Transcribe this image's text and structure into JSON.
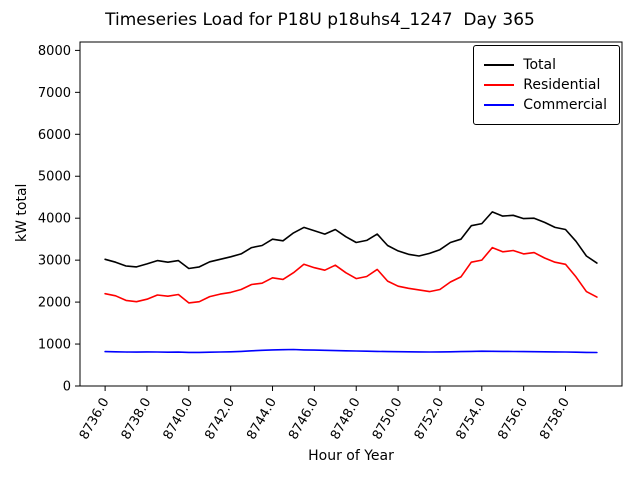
{
  "chart_data": {
    "type": "line",
    "title": "Timeseries Load for P18U p18uhs4_1247  Day 365",
    "xlabel": "Hour of Year",
    "ylabel": "kW total",
    "xlim": [
      8734.8,
      8760.7
    ],
    "ylim": [
      0,
      8200
    ],
    "grid": false,
    "legend_position": "upper right",
    "xticks": [
      8736,
      8738,
      8740,
      8742,
      8744,
      8746,
      8748,
      8750,
      8752,
      8754,
      8756,
      8758
    ],
    "xtick_labels": [
      "8736.0",
      "8738.0",
      "8740.0",
      "8742.0",
      "8744.0",
      "8746.0",
      "8748.0",
      "8750.0",
      "8752.0",
      "8754.0",
      "8756.0",
      "8758.0"
    ],
    "yticks": [
      0,
      1000,
      2000,
      3000,
      4000,
      5000,
      6000,
      7000,
      8000
    ],
    "ytick_labels": [
      "0",
      "1000",
      "2000",
      "3000",
      "4000",
      "5000",
      "6000",
      "7000",
      "8000"
    ],
    "x": [
      8736.0,
      8736.5,
      8737.0,
      8737.5,
      8738.0,
      8738.5,
      8739.0,
      8739.5,
      8740.0,
      8740.5,
      8741.0,
      8741.5,
      8742.0,
      8742.5,
      8743.0,
      8743.5,
      8744.0,
      8744.5,
      8745.0,
      8745.5,
      8746.0,
      8746.5,
      8747.0,
      8747.5,
      8748.0,
      8748.5,
      8749.0,
      8749.5,
      8750.0,
      8750.5,
      8751.0,
      8751.5,
      8752.0,
      8752.5,
      8753.0,
      8753.5,
      8754.0,
      8754.5,
      8755.0,
      8755.5,
      8756.0,
      8756.5,
      8757.0,
      8757.5,
      8758.0,
      8758.5,
      8759.0,
      8759.5
    ],
    "series": [
      {
        "name": "Total",
        "color": "#000000",
        "values": [
          3020,
          2950,
          2860,
          2840,
          2910,
          2990,
          2950,
          2990,
          2800,
          2840,
          2960,
          3020,
          3080,
          3150,
          3300,
          3350,
          3500,
          3460,
          3650,
          3780,
          3700,
          3620,
          3730,
          3560,
          3420,
          3470,
          3620,
          3350,
          3220,
          3140,
          3100,
          3160,
          3250,
          3420,
          3500,
          3820,
          3870,
          4150,
          4050,
          4070,
          3990,
          4000,
          3900,
          3780,
          3730,
          3450,
          3100,
          2930
        ]
      },
      {
        "name": "Residential",
        "color": "#ff0000",
        "values": [
          2200,
          2150,
          2040,
          2010,
          2070,
          2170,
          2140,
          2180,
          1980,
          2010,
          2130,
          2190,
          2230,
          2300,
          2420,
          2450,
          2580,
          2540,
          2700,
          2900,
          2820,
          2760,
          2880,
          2700,
          2560,
          2610,
          2780,
          2500,
          2380,
          2330,
          2290,
          2250,
          2300,
          2480,
          2600,
          2950,
          3000,
          3300,
          3200,
          3230,
          3150,
          3180,
          3050,
          2950,
          2900,
          2600,
          2250,
          2120
        ]
      },
      {
        "name": "Commercial",
        "color": "#0000ff",
        "values": [
          820,
          815,
          810,
          808,
          812,
          810,
          805,
          808,
          800,
          802,
          805,
          810,
          815,
          825,
          840,
          850,
          860,
          865,
          870,
          860,
          855,
          850,
          845,
          840,
          835,
          830,
          825,
          820,
          818,
          815,
          812,
          810,
          812,
          815,
          820,
          825,
          830,
          828,
          825,
          822,
          820,
          818,
          815,
          812,
          810,
          805,
          800,
          798
        ]
      }
    ]
  }
}
